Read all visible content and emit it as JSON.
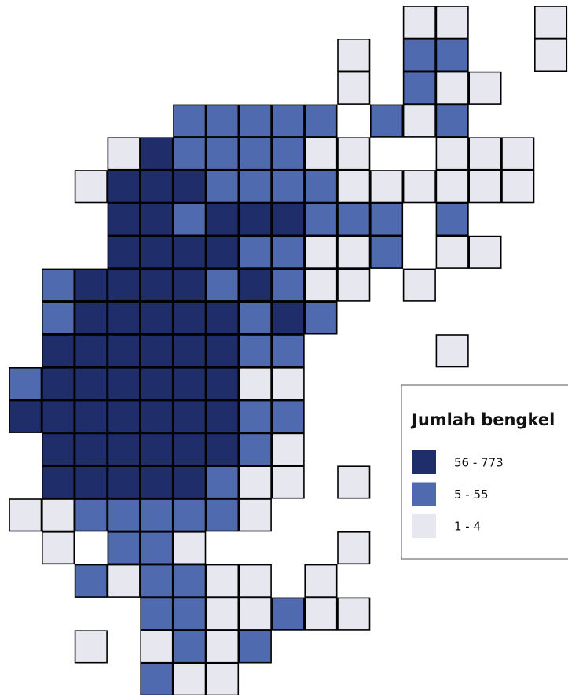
{
  "legend": {
    "title": "Jumlah bengkel",
    "items": [
      {
        "label": "56 - 773",
        "color": "#1f2d6b"
      },
      {
        "label": "5 - 55",
        "color": "#4f6aae"
      },
      {
        "label": "1 - 4",
        "color": "#e7e7ef"
      }
    ]
  },
  "cells": [
    [
      null,
      null,
      null,
      null,
      null,
      null,
      null,
      null,
      null,
      null,
      null,
      null,
      2,
      2,
      null,
      null,
      2
    ],
    [
      null,
      null,
      null,
      null,
      null,
      null,
      null,
      null,
      null,
      null,
      2,
      null,
      1,
      1,
      null,
      null,
      2
    ],
    [
      null,
      null,
      null,
      null,
      null,
      null,
      null,
      null,
      null,
      null,
      2,
      null,
      1,
      2,
      2
    ],
    [
      null,
      null,
      null,
      null,
      null,
      1,
      1,
      1,
      1,
      1,
      null,
      1,
      2,
      1
    ],
    [
      null,
      null,
      null,
      2,
      0,
      1,
      1,
      1,
      1,
      2,
      2,
      null,
      null,
      2,
      2,
      2
    ],
    [
      null,
      null,
      2,
      0,
      0,
      0,
      1,
      1,
      1,
      1,
      2,
      2,
      2,
      2,
      2,
      2
    ],
    [
      null,
      null,
      null,
      0,
      0,
      1,
      0,
      0,
      0,
      1,
      1,
      1,
      null,
      1
    ],
    [
      null,
      null,
      null,
      0,
      0,
      0,
      0,
      1,
      1,
      2,
      2,
      1,
      null,
      2,
      2
    ],
    [
      null,
      1,
      0,
      0,
      0,
      0,
      1,
      0,
      1,
      2,
      2,
      null,
      2
    ],
    [
      null,
      1,
      0,
      0,
      0,
      0,
      0,
      1,
      0,
      1
    ],
    [
      null,
      0,
      0,
      0,
      0,
      0,
      0,
      1,
      1,
      null,
      null,
      null,
      null,
      2
    ],
    [
      1,
      0,
      0,
      0,
      0,
      0,
      0,
      2,
      2
    ],
    [
      0,
      0,
      0,
      0,
      0,
      0,
      0,
      1,
      1
    ],
    [
      null,
      0,
      0,
      0,
      0,
      0,
      0,
      1,
      2
    ],
    [
      null,
      0,
      0,
      0,
      0,
      0,
      1,
      2,
      2,
      null,
      2
    ],
    [
      2,
      2,
      1,
      1,
      1,
      1,
      1,
      2
    ],
    [
      null,
      2,
      null,
      1,
      1,
      2,
      null,
      null,
      null,
      null,
      2
    ],
    [
      null,
      null,
      1,
      2,
      1,
      1,
      2,
      2,
      null,
      2
    ],
    [
      null,
      null,
      null,
      null,
      1,
      1,
      2,
      2,
      1,
      2,
      2
    ],
    [
      null,
      null,
      2,
      null,
      2,
      1,
      2,
      1
    ],
    [
      null,
      null,
      null,
      null,
      1,
      2,
      2
    ]
  ]
}
